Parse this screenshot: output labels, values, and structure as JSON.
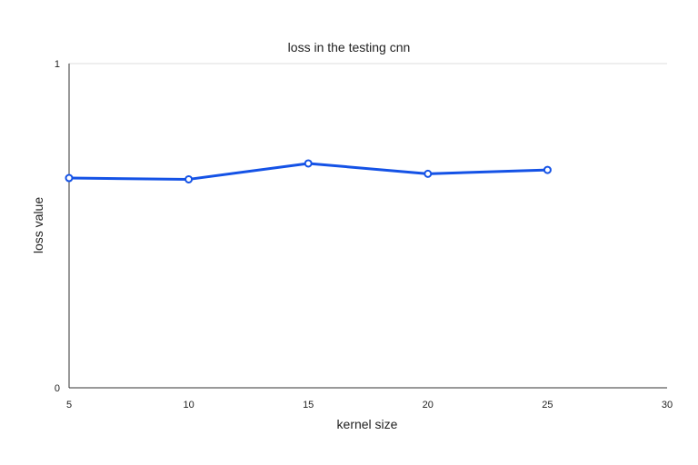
{
  "chart_data": {
    "type": "line",
    "title": "loss in the testing cnn",
    "xlabel": "kernel size",
    "ylabel": "loss value",
    "x": [
      5,
      10,
      15,
      20,
      25
    ],
    "series": [
      {
        "values": [
          0.647,
          0.643,
          0.692,
          0.66,
          0.672
        ]
      }
    ],
    "xlim": [
      5,
      30
    ],
    "ylim": [
      0,
      1
    ],
    "xticks": [
      5,
      10,
      15,
      20,
      25,
      30
    ],
    "yticks": [
      0,
      1
    ],
    "grid": true,
    "legend": "none",
    "colors": {
      "line": "#1452e6",
      "grid": "#dddddd",
      "axis": "#333333"
    }
  }
}
